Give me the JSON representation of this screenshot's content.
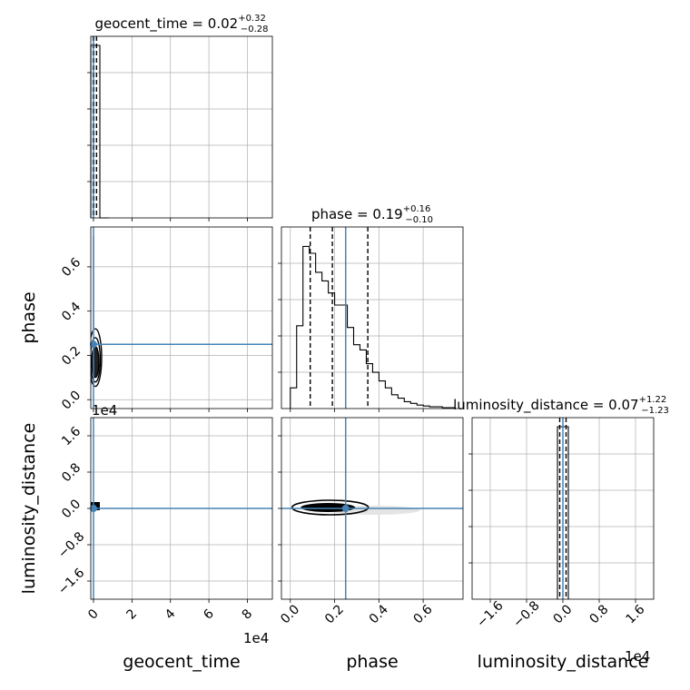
{
  "chart_data": {
    "type": "corner",
    "parameters": [
      "geocent_time",
      "phase",
      "luminosity_distance"
    ],
    "truth": {
      "geocent_time": 0,
      "phase": 0.25,
      "luminosity_distance": 0
    },
    "colors": {
      "truth": "#4682b4",
      "hist": "#000000",
      "grid": "#b0b0b0",
      "samples": "#cfcfcf"
    },
    "titles": {
      "geocent_time": {
        "prefix": "geocent_time = ",
        "value": "0.02",
        "plus": "+0.32",
        "minus": "−0.28"
      },
      "phase": {
        "prefix": "phase = ",
        "value": "0.19",
        "plus": "+0.16",
        "minus": "−0.10"
      },
      "luminosity_distance": {
        "prefix": "luminosity_distance = ",
        "value": "0.07",
        "plus": "+1.22",
        "minus": "−1.23"
      }
    },
    "axis_labels": {
      "geocent_time": "geocent_time",
      "phase": "phase",
      "luminosity_distance": "luminosity_distance"
    },
    "offset_labels": {
      "geocent_time_x": "1e4",
      "luminosity_distance_y": "1e4",
      "luminosity_distance_x": "1e4"
    },
    "ranges": {
      "geocent_time": [
        -1400,
        93000
      ],
      "phase": [
        -0.04,
        0.78
      ],
      "luminosity_distance": [
        -20000,
        20000
      ]
    },
    "ticks": {
      "geocent_time": {
        "values": [
          0,
          20000,
          40000,
          60000,
          80000
        ],
        "labels": [
          "0",
          "2",
          "4",
          "6",
          "8"
        ]
      },
      "phase": {
        "values": [
          0.0,
          0.2,
          0.4,
          0.6
        ],
        "labels": [
          "0.0",
          "0.2",
          "0.4",
          "0.6"
        ]
      },
      "luminosity_distance": {
        "values": [
          -16000,
          -8000,
          0,
          8000,
          16000
        ],
        "labels": [
          "−1.6",
          "−0.8",
          "0.0",
          "0.8",
          "1.6"
        ]
      }
    },
    "histograms": {
      "geocent_time": {
        "edges": [
          -1400,
          3320,
          8040
        ],
        "counts": [
          1.0,
          0.0
        ]
      },
      "phase": {
        "edges": [
          0.0,
          0.0286,
          0.0572,
          0.0858,
          0.1144,
          0.143,
          0.1716,
          0.2002,
          0.2288,
          0.2574,
          0.286,
          0.3146,
          0.3432,
          0.3718,
          0.4004,
          0.429,
          0.4576,
          0.4862,
          0.5148,
          0.5434,
          0.572,
          0.6006,
          0.6292,
          0.6578,
          0.6864,
          0.715,
          0.7436
        ],
        "counts": [
          0.12,
          0.48,
          0.94,
          0.9,
          0.79,
          0.74,
          0.67,
          0.6,
          0.6,
          0.47,
          0.37,
          0.34,
          0.26,
          0.21,
          0.16,
          0.12,
          0.08,
          0.06,
          0.04,
          0.03,
          0.02,
          0.015,
          0.01,
          0.01,
          0.005,
          0.005
        ]
      },
      "luminosity_distance": {
        "edges": [
          -1200,
          0,
          1200
        ],
        "counts": [
          1.0,
          1.0
        ]
      }
    },
    "quantiles": {
      "geocent_time": [
        -200,
        200,
        1600
      ],
      "phase": [
        0.09,
        0.19,
        0.35
      ],
      "luminosity_distance": [
        -700,
        700
      ]
    }
  }
}
